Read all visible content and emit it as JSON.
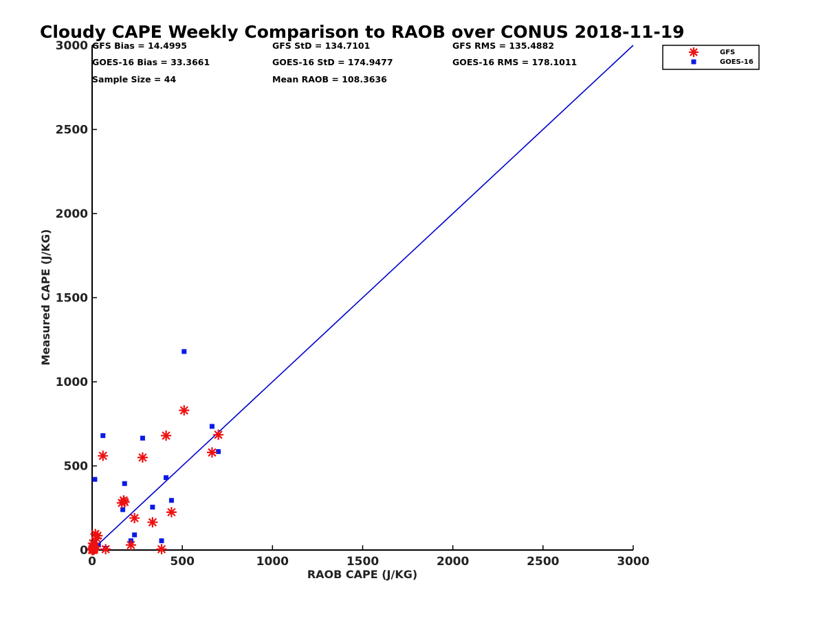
{
  "chart_data": {
    "type": "scatter",
    "title": "Cloudy CAPE Weekly Comparison to RAOB over CONUS 2018-11-19",
    "xlabel": "RAOB CAPE (J/KG)",
    "ylabel": "Measured CAPE (J/KG)",
    "xlim": [
      0,
      3000
    ],
    "ylim": [
      0,
      3000
    ],
    "xticks": [
      "0",
      "500",
      "1000",
      "1500",
      "2000",
      "2500",
      "3000"
    ],
    "yticks": [
      "0",
      "500",
      "1000",
      "1500",
      "2000",
      "2500",
      "3000"
    ],
    "grid": false,
    "legend_position": "top-right",
    "stats": [
      [
        "GFS Bias = 14.4995",
        "GFS StD = 134.7101",
        "GFS RMS = 135.4882"
      ],
      [
        "GOES-16 Bias = 33.3661",
        "GOES-16 StD = 174.9477",
        "GOES-16 RMS = 178.1011"
      ],
      [
        "Sample Size = 44",
        "Mean RAOB = 108.3636",
        ""
      ]
    ],
    "reference_line": {
      "x": [
        0,
        3000
      ],
      "y": [
        0,
        3000
      ],
      "color": "#0000cc"
    },
    "series": [
      {
        "name": "GFS",
        "marker": "asterisk",
        "color": "#ee1111",
        "points": [
          [
            0,
            0
          ],
          [
            2,
            5
          ],
          [
            4,
            10
          ],
          [
            6,
            0
          ],
          [
            8,
            15
          ],
          [
            10,
            2
          ],
          [
            12,
            8
          ],
          [
            15,
            20
          ],
          [
            18,
            95
          ],
          [
            25,
            70
          ],
          [
            30,
            85
          ],
          [
            5,
            40
          ],
          [
            60,
            560
          ],
          [
            75,
            5
          ],
          [
            165,
            280
          ],
          [
            175,
            295
          ],
          [
            180,
            285
          ],
          [
            215,
            30
          ],
          [
            235,
            190
          ],
          [
            280,
            550
          ],
          [
            335,
            165
          ],
          [
            385,
            5
          ],
          [
            410,
            680
          ],
          [
            440,
            225
          ],
          [
            510,
            830
          ],
          [
            665,
            580
          ],
          [
            700,
            685
          ]
        ]
      },
      {
        "name": "GOES-16",
        "marker": "square",
        "color": "#0a1ae8",
        "points": [
          [
            0,
            0
          ],
          [
            3,
            15
          ],
          [
            5,
            30
          ],
          [
            8,
            5
          ],
          [
            10,
            20
          ],
          [
            12,
            40
          ],
          [
            15,
            10
          ],
          [
            20,
            25
          ],
          [
            15,
            420
          ],
          [
            35,
            30
          ],
          [
            60,
            680
          ],
          [
            75,
            10
          ],
          [
            170,
            240
          ],
          [
            180,
            395
          ],
          [
            215,
            55
          ],
          [
            235,
            90
          ],
          [
            280,
            665
          ],
          [
            335,
            255
          ],
          [
            385,
            55
          ],
          [
            410,
            430
          ],
          [
            440,
            295
          ],
          [
            510,
            1180
          ],
          [
            665,
            735
          ],
          [
            700,
            585
          ]
        ]
      }
    ]
  }
}
